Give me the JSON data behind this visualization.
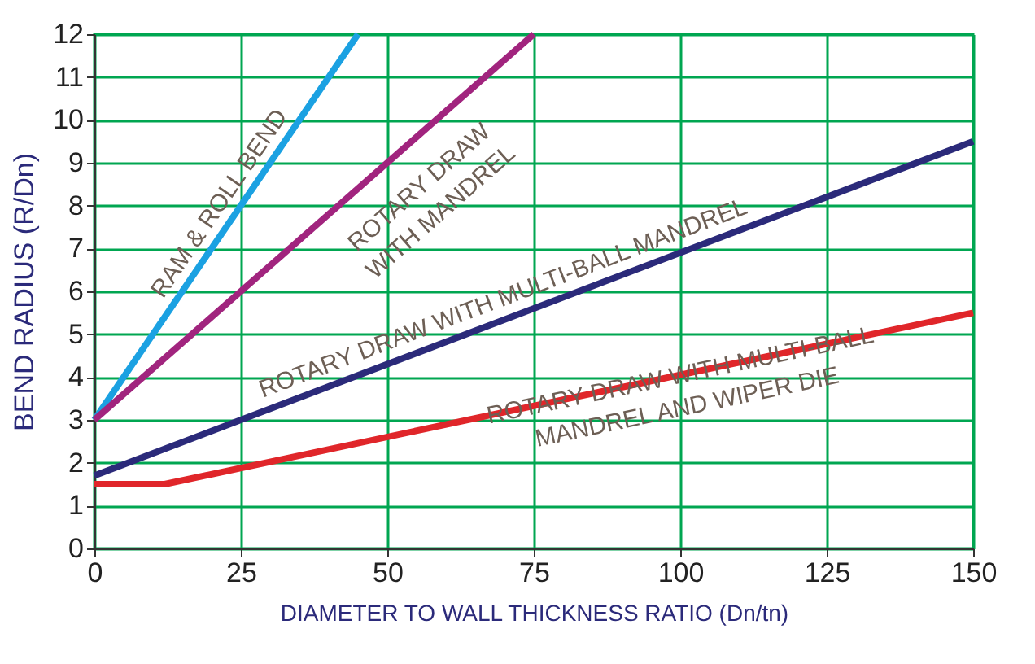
{
  "chart_data": {
    "type": "line",
    "xlabel": "DIAMETER TO WALL THICKNESS RATIO (Dn/tn)",
    "ylabel": "BEND RADIUS (R/Dn)",
    "xlim": [
      0,
      150
    ],
    "xticks": [
      0,
      25,
      50,
      75,
      100,
      125,
      150
    ],
    "ylim": [
      0,
      12
    ],
    "yticks": [
      0,
      1,
      2,
      3,
      4,
      5,
      6,
      7,
      8,
      9,
      10,
      11,
      12
    ],
    "grid": true,
    "marker": "none",
    "line_style": "solid",
    "series": [
      {
        "color": "#1ba1e2",
        "x": [
          0,
          45
        ],
        "values": [
          3,
          12
        ]
      },
      {
        "color": "#a1247e",
        "x": [
          0,
          75
        ],
        "values": [
          3,
          12
        ]
      },
      {
        "color": "#2b2a7a",
        "x": [
          0,
          150
        ],
        "values": [
          1.7,
          9.5
        ]
      },
      {
        "color": "#e0262a",
        "x": [
          0,
          12,
          150
        ],
        "values": [
          1.5,
          1.5,
          5.5
        ]
      }
    ],
    "annotations": [
      {
        "text": "RAM & ROLL BEND",
        "x": 24,
        "y": 7.8
      },
      {
        "text": "ROTARY DRAW\nWITH MANDREL",
        "x": 51,
        "y": 9.12
      },
      {
        "text": "ROTARY DRAW WITH MULTI-BALL MANDREL",
        "x": 71,
        "y": 5.39
      },
      {
        "text": "ROTARY DRAW WITH MULTI-BALL\nMANDREL AND WIPER DIE",
        "x": 100,
        "y": 4.05
      }
    ]
  }
}
